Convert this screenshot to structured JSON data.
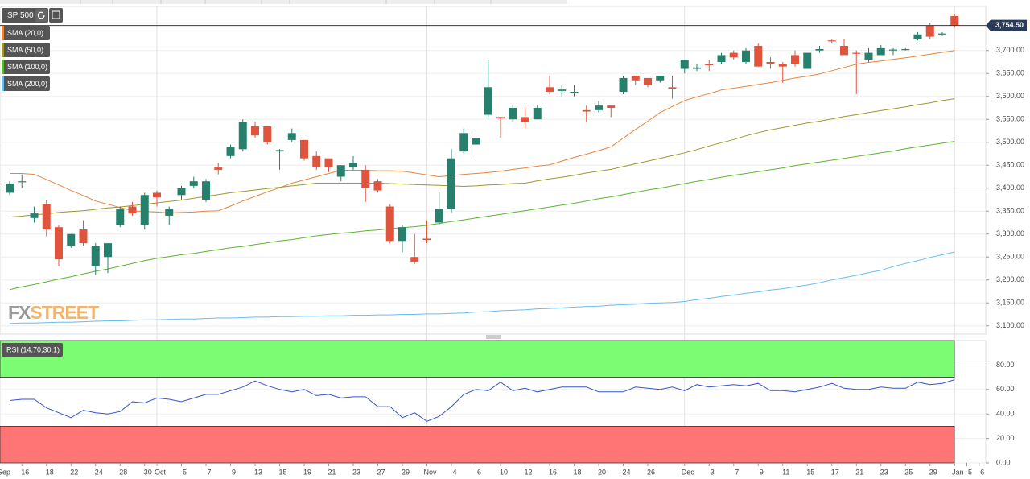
{
  "header": {
    "symbol": "SP 500"
  },
  "chart_data": [
    {
      "type": "candlestick",
      "categories": [
        null,
        "16",
        null,
        "18",
        null,
        "22",
        null,
        "24",
        null,
        "28",
        null,
        "30",
        "Oct",
        null,
        "5",
        null,
        "7",
        null,
        "9",
        null,
        "13",
        null,
        "15",
        null,
        "19",
        null,
        "21",
        null,
        "23",
        null,
        "27",
        null,
        "29",
        null,
        "Nov",
        null,
        "4",
        null,
        "6",
        null,
        "10",
        null,
        "12",
        null,
        "16",
        null,
        "18",
        null,
        "20",
        null,
        "24",
        null,
        "26",
        null,
        null,
        "Dec",
        null,
        "3",
        null,
        "7",
        null,
        "9",
        null,
        "11",
        null,
        "15",
        null,
        "17",
        null,
        "21",
        null,
        "23",
        null,
        "25",
        null,
        "29",
        null,
        "Jan",
        "5",
        "6"
      ],
      "first_category": "Sep",
      "open": [
        3390,
        3415,
        3335,
        3365,
        3315,
        3275,
        3310,
        3230,
        3250,
        3320,
        3360,
        3320,
        3390,
        3340,
        3385,
        3405,
        3375,
        3445,
        3470,
        3485,
        3535,
        3535,
        3480,
        3505,
        3505,
        3470,
        3465,
        3425,
        3445,
        3440,
        3415,
        3360,
        3285,
        3250,
        3290,
        3325,
        3355,
        3480,
        3495,
        3560,
        3555,
        3550,
        3555,
        3550,
        3620,
        3612,
        3608,
        3570,
        3570,
        3580,
        3610,
        3645,
        3640,
        3635,
        3620,
        3660,
        3660,
        3670,
        3675,
        3695,
        3675,
        3710,
        3675,
        3670,
        3690,
        3660,
        3700,
        3722,
        3710,
        3695,
        3680,
        3690,
        3700,
        3702,
        3725,
        3755,
        3735,
        3775,
        null,
        null
      ],
      "high": [
        3415,
        3430,
        3360,
        3375,
        3320,
        3300,
        3330,
        3280,
        3280,
        3360,
        3370,
        3390,
        3395,
        3360,
        3405,
        3425,
        3420,
        3455,
        3495,
        3550,
        3545,
        3535,
        3485,
        3530,
        3505,
        3480,
        3465,
        3450,
        3470,
        3450,
        3420,
        3365,
        3320,
        3300,
        3330,
        3390,
        3485,
        3530,
        3520,
        3680,
        3555,
        3580,
        3575,
        3580,
        3645,
        3625,
        3625,
        3580,
        3590,
        3580,
        3645,
        3645,
        3640,
        3645,
        3645,
        3680,
        3670,
        3680,
        3695,
        3700,
        3705,
        3715,
        3685,
        3675,
        3700,
        3695,
        3710,
        3725,
        3725,
        3700,
        3705,
        3712,
        3705,
        3705,
        3740,
        3760,
        3740,
        3780,
        null,
        null
      ],
      "low": [
        3385,
        3400,
        3325,
        3295,
        3230,
        3270,
        3275,
        3210,
        3215,
        3315,
        3340,
        3310,
        3360,
        3320,
        3375,
        3400,
        3370,
        3430,
        3465,
        3480,
        3510,
        3495,
        3440,
        3500,
        3460,
        3440,
        3435,
        3415,
        3440,
        3370,
        3390,
        3280,
        3260,
        3235,
        3280,
        3320,
        3345,
        3475,
        3465,
        3555,
        3510,
        3545,
        3530,
        3550,
        3605,
        3600,
        3600,
        3545,
        3565,
        3555,
        3605,
        3625,
        3620,
        3630,
        3595,
        3650,
        3655,
        3655,
        3670,
        3680,
        3670,
        3665,
        3660,
        3630,
        3665,
        3660,
        3695,
        3715,
        3690,
        3605,
        3675,
        3690,
        3690,
        3700,
        3722,
        3725,
        3732,
        3750,
        null,
        null
      ],
      "close": [
        3410,
        3415,
        3345,
        3310,
        3245,
        3300,
        3280,
        3275,
        3280,
        3355,
        3345,
        3385,
        3380,
        3355,
        3400,
        3415,
        3415,
        3440,
        3490,
        3545,
        3515,
        3500,
        3483,
        3520,
        3465,
        3445,
        3445,
        3450,
        3455,
        3400,
        3395,
        3285,
        3315,
        3240,
        3287,
        3355,
        3465,
        3520,
        3510,
        3620,
        3552,
        3575,
        3545,
        3575,
        3610,
        3615,
        3610,
        3567,
        3580,
        3575,
        3640,
        3635,
        3625,
        3645,
        3617,
        3680,
        3663,
        3668,
        3690,
        3685,
        3700,
        3665,
        3670,
        3665,
        3670,
        3695,
        3703,
        3720,
        3690,
        3694,
        3695,
        3705,
        3702,
        3703,
        3735,
        3730,
        3737,
        3754.5,
        null,
        null
      ],
      "up_color": "#26806b",
      "down_color": "#e0533d",
      "series": [
        {
          "name": "SMA (20,0)",
          "color": "#e8843c",
          "values": [
            3432,
            3432,
            3430,
            3419,
            3407,
            3395,
            3384,
            3372,
            3365,
            3358,
            3351,
            3349,
            3348,
            3346,
            3347,
            3348,
            3350,
            3351,
            3361,
            3372,
            3382,
            3392,
            3401,
            3411,
            3418,
            3425,
            3432,
            3439,
            3439,
            3439,
            3438,
            3438,
            3437,
            3433,
            3429,
            3425,
            3427,
            3430,
            3432,
            3434,
            3437,
            3441,
            3444,
            3448,
            3451,
            3459,
            3467,
            3474,
            3482,
            3490,
            3509,
            3528,
            3546,
            3565,
            3578,
            3591,
            3599,
            3606,
            3614,
            3618,
            3622,
            3626,
            3630,
            3635,
            3640,
            3644,
            3649,
            3656,
            3663,
            3670,
            3674,
            3677,
            3681,
            3684,
            3688,
            3692,
            3696,
            3700,
            null,
            null
          ]
        },
        {
          "name": "SMA (50,0)",
          "color": "#9a9a2c",
          "values": [
            3337,
            3339,
            3342,
            3344,
            3347,
            3349,
            3351,
            3354,
            3357,
            3359,
            3362,
            3365,
            3368,
            3371,
            3374,
            3378,
            3382,
            3386,
            3390,
            3393,
            3396,
            3399,
            3402,
            3405,
            3408,
            3411,
            3411,
            3411,
            3411,
            3411,
            3411,
            3410,
            3409,
            3408,
            3407,
            3406,
            3405,
            3404,
            3405,
            3407,
            3408,
            3410,
            3411,
            3416,
            3420,
            3424,
            3428,
            3433,
            3437,
            3441,
            3447,
            3453,
            3459,
            3465,
            3471,
            3477,
            3484,
            3492,
            3499,
            3506,
            3514,
            3521,
            3527,
            3532,
            3537,
            3542,
            3546,
            3551,
            3556,
            3560,
            3565,
            3569,
            3573,
            3577,
            3582,
            3586,
            3591,
            3595,
            null,
            null
          ]
        },
        {
          "name": "SMA (100,0)",
          "color": "#5cb531",
          "values": [
            3179,
            3185,
            3190,
            3196,
            3202,
            3207,
            3213,
            3219,
            3224,
            3230,
            3236,
            3242,
            3247,
            3251,
            3255,
            3258,
            3262,
            3266,
            3270,
            3273,
            3277,
            3281,
            3285,
            3288,
            3292,
            3296,
            3299,
            3302,
            3304,
            3307,
            3309,
            3312,
            3314,
            3316,
            3319,
            3323,
            3327,
            3331,
            3335,
            3339,
            3343,
            3347,
            3351,
            3355,
            3359,
            3363,
            3367,
            3372,
            3377,
            3381,
            3386,
            3391,
            3396,
            3400,
            3405,
            3410,
            3415,
            3419,
            3424,
            3428,
            3432,
            3436,
            3440,
            3444,
            3449,
            3453,
            3457,
            3461,
            3465,
            3469,
            3473,
            3477,
            3481,
            3486,
            3490,
            3494,
            3498,
            3502,
            null,
            null
          ]
        },
        {
          "name": "SMA (200,0)",
          "color": "#67bdf0",
          "values": [
            3105,
            3106,
            3106,
            3107,
            3108,
            3108,
            3109,
            3110,
            3111,
            3111,
            3112,
            3113,
            3113,
            3114,
            3115,
            3115,
            3116,
            3117,
            3117,
            3118,
            3119,
            3119,
            3120,
            3120,
            3121,
            3121,
            3122,
            3122,
            3123,
            3123,
            3124,
            3124,
            3125,
            3125,
            3126,
            3126,
            3127,
            3128,
            3130,
            3131,
            3133,
            3134,
            3135,
            3137,
            3138,
            3139,
            3141,
            3142,
            3143,
            3145,
            3146,
            3147,
            3149,
            3150,
            3151,
            3153,
            3157,
            3160,
            3164,
            3167,
            3171,
            3174,
            3178,
            3181,
            3185,
            3189,
            3194,
            3200,
            3205,
            3210,
            3216,
            3221,
            3229,
            3236,
            3242,
            3249,
            3255,
            3261,
            null,
            null
          ]
        }
      ],
      "ylim": [
        3082,
        3796
      ],
      "yticks": [
        {
          "value": 3100,
          "label": "3,100.00"
        },
        {
          "value": 3150,
          "label": "3,150.00"
        },
        {
          "value": 3200,
          "label": "3,200.00"
        },
        {
          "value": 3250,
          "label": "3,250.00"
        },
        {
          "value": 3300,
          "label": "3,300.00"
        },
        {
          "value": 3350,
          "label": "3,350.00"
        },
        {
          "value": 3400,
          "label": "3,400.00"
        },
        {
          "value": 3450,
          "label": "3,450.00"
        },
        {
          "value": 3500,
          "label": "3,500.00"
        },
        {
          "value": 3550,
          "label": "3,550.00"
        },
        {
          "value": 3600,
          "label": "3,600.00"
        },
        {
          "value": 3650,
          "label": "3,650.00"
        },
        {
          "value": 3700,
          "label": "3,700.00"
        }
      ],
      "last_price": {
        "value": 3754.5,
        "label": "3,754.50"
      },
      "watermark": [
        "FX",
        "STREET"
      ],
      "grid": true,
      "month_lines": true
    },
    {
      "type": "line",
      "title": "RSI (14,70,30,1)",
      "series": [
        {
          "color": "#3355cc",
          "values": [
            51,
            52,
            52,
            45,
            41,
            37,
            43,
            41,
            40,
            42,
            50,
            49,
            53,
            52,
            50,
            53,
            56,
            56,
            59,
            62,
            67,
            63,
            60,
            58,
            60,
            55,
            56,
            53,
            54,
            54,
            46,
            46,
            37,
            41,
            34,
            38,
            46,
            56,
            60,
            59,
            66,
            59,
            61,
            58,
            60,
            62,
            62,
            62,
            58,
            58,
            58,
            62,
            61,
            60,
            62,
            59,
            64,
            62,
            63,
            64,
            63,
            65,
            59,
            59,
            58,
            60,
            62,
            65,
            61,
            60,
            60,
            62,
            61,
            61,
            66,
            64,
            65,
            68,
            null,
            null
          ]
        }
      ],
      "overbought_zone": [
        70,
        100
      ],
      "overbought_color": "#7cfc72",
      "oversold_zone": [
        0,
        30
      ],
      "oversold_color": "#ff7474",
      "ylim": [
        0,
        100
      ],
      "yticks": [
        {
          "value": 0,
          "label": "0.00"
        },
        {
          "value": 20,
          "label": "20.00"
        },
        {
          "value": 40,
          "label": "40.00"
        },
        {
          "value": 60,
          "label": "60.00"
        },
        {
          "value": 80,
          "label": "80.00"
        }
      ]
    }
  ]
}
